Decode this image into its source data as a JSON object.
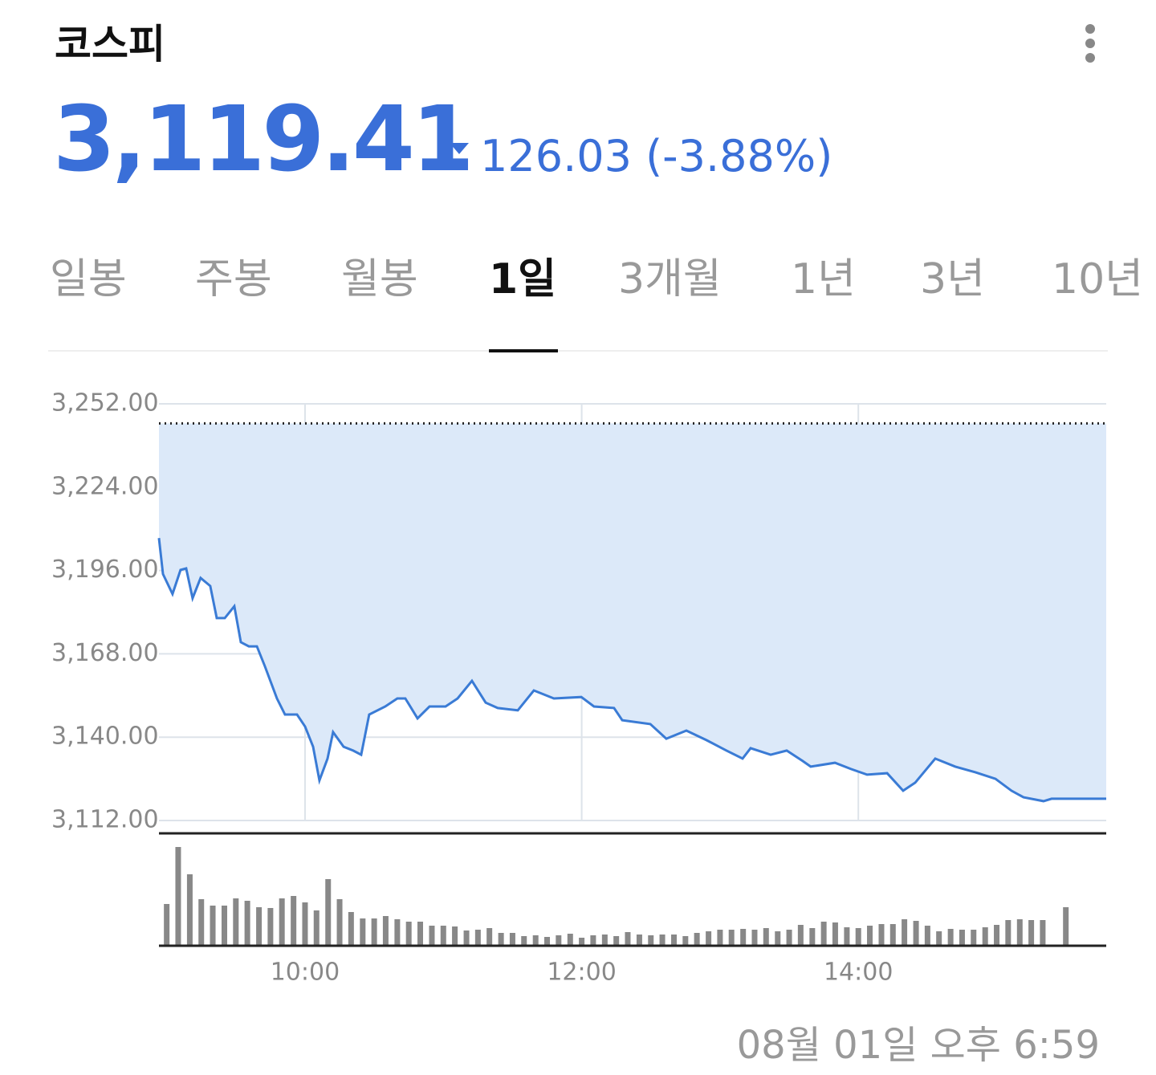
{
  "header": {
    "title": "코스피",
    "price": "3,119.41",
    "change": "126.03 (-3.88%)"
  },
  "tabs": [
    "일봉",
    "주봉",
    "월봉",
    "1일",
    "3개월",
    "1년",
    "3년",
    "10년"
  ],
  "active_tab": 3,
  "chart_data": [
    {
      "type": "area",
      "color": "#3a7bd5",
      "fill": "#dce9f9",
      "grid": true,
      "reference_line": 3245.44,
      "xlim": [
        8.944,
        15.792
      ],
      "xticks": [
        {
          "value": 10,
          "label": "10:00"
        },
        {
          "value": 12,
          "label": "12:00"
        },
        {
          "value": 14,
          "label": "14:00"
        }
      ],
      "ylim": [
        3112,
        3252
      ],
      "yticks": [
        {
          "value": 3112,
          "label": "3,112.00"
        },
        {
          "value": 3140,
          "label": "3,140.00"
        },
        {
          "value": 3168,
          "label": "3,168.00"
        },
        {
          "value": 3196,
          "label": "3,196.00"
        },
        {
          "value": 3224,
          "label": "3,224.00"
        },
        {
          "value": 3252,
          "label": "3,252.00"
        }
      ],
      "x": [
        8.944,
        8.973,
        9.042,
        9.1,
        9.141,
        9.187,
        9.245,
        9.315,
        9.362,
        9.42,
        9.489,
        9.536,
        9.594,
        9.652,
        9.71,
        9.797,
        9.855,
        9.942,
        10.0,
        10.058,
        10.104,
        10.163,
        10.203,
        10.279,
        10.348,
        10.406,
        10.464,
        10.58,
        10.667,
        10.725,
        10.813,
        10.9,
        11.016,
        11.103,
        11.207,
        11.306,
        11.393,
        11.538,
        11.654,
        11.799,
        11.997,
        12.089,
        12.234,
        12.293,
        12.496,
        12.612,
        12.757,
        12.902,
        13.047,
        13.163,
        13.221,
        13.366,
        13.482,
        13.598,
        13.656,
        13.831,
        13.947,
        14.063,
        14.208,
        14.324,
        14.411,
        14.556,
        14.701,
        14.846,
        14.991,
        15.107,
        15.194,
        15.339,
        15.397,
        15.792
      ],
      "values": [
        3206.9,
        3194.8,
        3188.1,
        3196.2,
        3196.7,
        3186.7,
        3193.5,
        3190.8,
        3180.0,
        3180.0,
        3184.0,
        3171.9,
        3170.5,
        3170.5,
        3163.8,
        3153.0,
        3147.6,
        3147.6,
        3143.6,
        3136.8,
        3125.5,
        3132.8,
        3141.7,
        3136.8,
        3135.5,
        3134.1,
        3147.6,
        3150.3,
        3153.0,
        3153.0,
        3146.3,
        3150.3,
        3150.3,
        3153.0,
        3158.9,
        3151.6,
        3149.8,
        3149.0,
        3155.7,
        3153.0,
        3153.5,
        3150.3,
        3149.8,
        3145.7,
        3144.4,
        3139.5,
        3142.2,
        3139.0,
        3135.5,
        3132.8,
        3136.3,
        3134.1,
        3135.5,
        3132.0,
        3130.1,
        3131.4,
        3129.3,
        3127.4,
        3127.9,
        3122.0,
        3124.7,
        3132.8,
        3130.1,
        3128.2,
        3126.0,
        3122.0,
        3119.8,
        3118.5,
        3119.3,
        3119.3
      ]
    },
    {
      "type": "bar",
      "color": "#888888",
      "xlim": [
        8.944,
        15.792
      ],
      "ylim": [
        0,
        130
      ],
      "x": [
        9,
        9.083,
        9.167,
        9.25,
        9.333,
        9.417,
        9.5,
        9.583,
        9.667,
        9.75,
        9.833,
        9.917,
        10,
        10.083,
        10.167,
        10.25,
        10.333,
        10.417,
        10.5,
        10.583,
        10.667,
        10.75,
        10.833,
        10.917,
        11,
        11.083,
        11.167,
        11.25,
        11.333,
        11.417,
        11.5,
        11.583,
        11.667,
        11.75,
        11.833,
        11.917,
        12,
        12.083,
        12.167,
        12.25,
        12.333,
        12.417,
        12.5,
        12.583,
        12.667,
        12.75,
        12.833,
        12.917,
        13,
        13.083,
        13.167,
        13.25,
        13.333,
        13.417,
        13.5,
        13.583,
        13.667,
        13.75,
        13.833,
        13.917,
        14,
        14.083,
        14.167,
        14.25,
        14.333,
        14.417,
        14.5,
        14.583,
        14.667,
        14.75,
        14.833,
        14.917,
        15,
        15.083,
        15.167,
        15.25,
        15.333,
        15.5
      ],
      "values": [
        52,
        123,
        89,
        58,
        50,
        50,
        59,
        56,
        48,
        47,
        59,
        62,
        54,
        44,
        83,
        58,
        42,
        34,
        34,
        37,
        33,
        30,
        30,
        25,
        25,
        24,
        19,
        20,
        22,
        16,
        16,
        12,
        13,
        11,
        13,
        15,
        10,
        13,
        14,
        12,
        17,
        14,
        13,
        14,
        14,
        12,
        16,
        18,
        20,
        20,
        21,
        20,
        22,
        18,
        20,
        26,
        22,
        30,
        29,
        23,
        22,
        25,
        27,
        27,
        33,
        31,
        25,
        18,
        21,
        20,
        20,
        23,
        26,
        32,
        33,
        32,
        32,
        48
      ]
    }
  ],
  "timestamp": "08월 01일 오후 6:59"
}
